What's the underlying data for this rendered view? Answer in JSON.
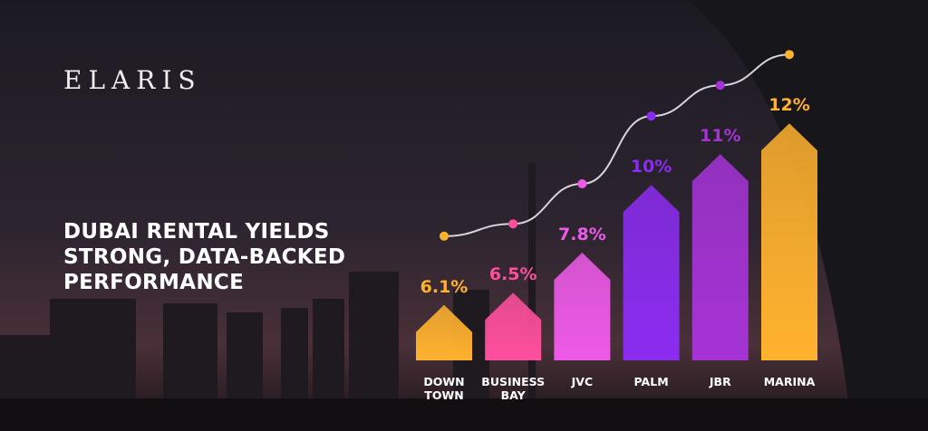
{
  "brand": "ELARIS",
  "chart_data": {
    "type": "bar",
    "title": [
      "DUBAI RENTAL YIELDS",
      "STRONG, DATA-BACKED",
      "PERFORMANCE"
    ],
    "categories": [
      "DOWN TOWN",
      "BUSINESS BAY",
      "JVC",
      "PALM",
      "JBR",
      "MARINA"
    ],
    "values": [
      6.1,
      6.5,
      7.8,
      10,
      11,
      12
    ],
    "value_labels": [
      "6.1%",
      "6.5%",
      "7.8%",
      "10%",
      "11%",
      "12%"
    ],
    "colors": [
      "#ffb22e",
      "#ff4f9e",
      "#ee5ae8",
      "#8b2cf0",
      "#a533d6",
      "#ffb22e"
    ],
    "trend_line": true
  }
}
